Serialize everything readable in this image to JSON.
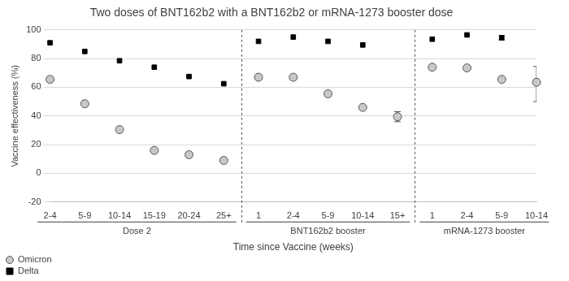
{
  "chart_data": {
    "type": "scatter",
    "title": "Two doses of BNT162b2 with a BNT162b2 or mRNA-1273 booster dose",
    "x_label": "Time since Vaccine (weeks)",
    "y_label": "Vaccine effectiveness (%)",
    "categories": [
      "2-4",
      "5-9",
      "10-14",
      "15-19",
      "20-24",
      "25+",
      "1",
      "2-4",
      "5-9",
      "10-14",
      "15+",
      "1",
      "2-4",
      "5-9",
      "10-14"
    ],
    "groups": [
      {
        "label": "Dose 2",
        "categories": [
          "2-4",
          "5-9",
          "10-14",
          "15-19",
          "20-24",
          "25+"
        ]
      },
      {
        "label": "BNT162b2 booster",
        "categories": [
          "1",
          "2-4",
          "5-9",
          "10-14",
          "15+"
        ]
      },
      {
        "label": "mRNA-1273 booster",
        "categories": [
          "1",
          "2-4",
          "5-9",
          "10-14"
        ]
      }
    ],
    "series": [
      {
        "name": "Omicron",
        "color": "#c8c8c8",
        "marker": "circle",
        "values": [
          65.5,
          48.5,
          30.5,
          16,
          13,
          9,
          67,
          67,
          55.5,
          46,
          39.5,
          74,
          73.5,
          65.5,
          63.5
        ],
        "error_low": [
          null,
          null,
          null,
          null,
          null,
          null,
          null,
          null,
          null,
          null,
          36,
          null,
          null,
          null,
          50
        ],
        "error_high": [
          null,
          null,
          null,
          null,
          null,
          null,
          null,
          null,
          null,
          null,
          43,
          null,
          null,
          null,
          74.5
        ]
      },
      {
        "name": "Delta",
        "color": "#000000",
        "marker": "square",
        "values": [
          91,
          85,
          78.5,
          74,
          67.5,
          62.5,
          92,
          95,
          92,
          89.5,
          null,
          93.5,
          96.5,
          94.5,
          null
        ],
        "error_low": [
          null,
          null,
          null,
          null,
          null,
          null,
          null,
          null,
          null,
          null,
          null,
          null,
          null,
          93,
          null
        ],
        "error_high": [
          null,
          null,
          null,
          null,
          null,
          null,
          null,
          null,
          null,
          null,
          null,
          null,
          null,
          96,
          null
        ]
      }
    ],
    "ylim": [
      -20,
      100
    ],
    "yticks": [
      -20,
      0,
      20,
      40,
      60,
      80,
      100
    ],
    "grid": true,
    "legend": "bottom-left"
  }
}
